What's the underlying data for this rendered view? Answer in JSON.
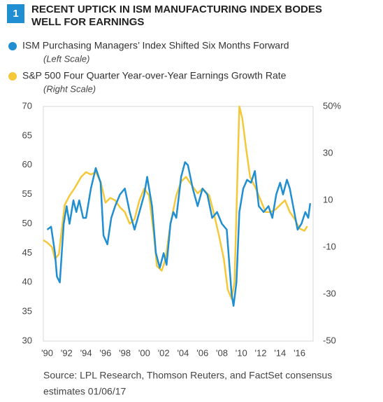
{
  "figure_number": "1",
  "chart_data": {
    "type": "line",
    "title": [
      "RECENT UPTICK IN ISM MANUFACTURING INDEX BODES",
      "WELL FOR EARNINGS"
    ],
    "xlim": [
      1989.6,
      2017.4
    ],
    "xticks": [
      {
        "value": 1990,
        "label": "'90"
      },
      {
        "value": 1992,
        "label": "'92"
      },
      {
        "value": 1994,
        "label": "'94"
      },
      {
        "value": 1996,
        "label": "'96"
      },
      {
        "value": 1998,
        "label": "'98"
      },
      {
        "value": 2000,
        "label": "'00"
      },
      {
        "value": 2002,
        "label": "'02"
      },
      {
        "value": 2004,
        "label": "'04"
      },
      {
        "value": 2006,
        "label": "'06"
      },
      {
        "value": 2008,
        "label": "'08"
      },
      {
        "value": 2010,
        "label": "'10"
      },
      {
        "value": 2012,
        "label": "'12"
      },
      {
        "value": 2014,
        "label": "'14"
      },
      {
        "value": 2016,
        "label": "'16"
      }
    ],
    "ylim": [
      30,
      70
    ],
    "yticks": [
      30,
      35,
      40,
      45,
      50,
      55,
      60,
      65,
      70
    ],
    "y2lim": [
      -50,
      50
    ],
    "y2ticks": [
      -50,
      -30,
      -10,
      10,
      30,
      {
        "value": 50,
        "label": "50%"
      }
    ],
    "grid": false,
    "series": [
      {
        "name": "ISM Purchasing Managers’ Index Shifted Six Months Forward",
        "note": "(Left Scale)",
        "color": "#1f8fd1",
        "axis": "y",
        "x": [
          1990.0,
          1990.4,
          1990.8,
          1991.0,
          1991.3,
          1991.7,
          1992.0,
          1992.3,
          1992.7,
          1993.0,
          1993.3,
          1993.7,
          1994.0,
          1994.5,
          1995.0,
          1995.5,
          1995.8,
          1996.2,
          1996.6,
          1997.0,
          1997.5,
          1998.0,
          1998.5,
          1999.0,
          1999.5,
          2000.0,
          2000.3,
          2000.8,
          2001.2,
          2001.6,
          2002.0,
          2002.3,
          2002.7,
          2003.0,
          2003.3,
          2003.8,
          2004.2,
          2004.5,
          2005.0,
          2005.5,
          2006.0,
          2006.5,
          2007.0,
          2007.5,
          2008.0,
          2008.5,
          2009.0,
          2009.2,
          2009.5,
          2009.8,
          2010.2,
          2010.6,
          2011.0,
          2011.4,
          2011.8,
          2012.3,
          2012.8,
          2013.2,
          2013.6,
          2014.0,
          2014.3,
          2014.7,
          2015.0,
          2015.4,
          2015.8,
          2016.2,
          2016.6,
          2016.9,
          2017.1
        ],
        "values": [
          49,
          49.5,
          45,
          41,
          40,
          50,
          53,
          50,
          54,
          52,
          54,
          51,
          51,
          56,
          59.5,
          57,
          48,
          46.5,
          51,
          53,
          55,
          56,
          52,
          49,
          52,
          55,
          58,
          53,
          45,
          42.5,
          45,
          43,
          50,
          52,
          51,
          58,
          60.5,
          60,
          56,
          53,
          56,
          55,
          51,
          52,
          50,
          49,
          38,
          36,
          40,
          52,
          56,
          57.5,
          57,
          59,
          53,
          52,
          53,
          51,
          55,
          57,
          55,
          57.5,
          56,
          52.5,
          49,
          50,
          52,
          51,
          53.5
        ]
      },
      {
        "name": "S&P 500 Four Quarter Year-over-Year Earnings Growth Rate",
        "note": "(Right Scale)",
        "color": "#f5c83a",
        "axis": "y2",
        "x": [
          1989.6,
          1990.0,
          1990.5,
          1990.8,
          1991.2,
          1991.8,
          1992.3,
          1992.8,
          1993.5,
          1994.0,
          1994.5,
          1995.0,
          1995.5,
          1996.0,
          1996.5,
          1997.0,
          1997.5,
          1998.0,
          1998.5,
          1999.0,
          1999.5,
          2000.0,
          2000.5,
          2001.0,
          2001.3,
          2001.8,
          2002.2,
          2002.7,
          2003.3,
          2003.8,
          2004.3,
          2004.8,
          2005.5,
          2006.0,
          2006.7,
          2007.2,
          2007.7,
          2008.2,
          2008.6,
          2009.0,
          2009.3,
          2009.6,
          2009.8,
          2010.1,
          2010.5,
          2010.9,
          2011.5,
          2012.0,
          2012.5,
          2013.0,
          2013.5,
          2014.0,
          2014.5,
          2015.0,
          2015.5,
          2016.0,
          2016.5,
          2016.8
        ],
        "values": [
          -7,
          -8,
          -10,
          -15,
          -13,
          8,
          12,
          15,
          20,
          22,
          21,
          22,
          18,
          9,
          11,
          10,
          7,
          5,
          0,
          2,
          10,
          15,
          12,
          -5,
          -18,
          -20,
          -15,
          0,
          12,
          18,
          20,
          17,
          13,
          15,
          12,
          4,
          -5,
          -15,
          -28,
          -32,
          -25,
          20,
          50,
          45,
          32,
          20,
          15,
          10,
          5,
          5,
          6,
          8,
          10,
          5,
          2,
          -2,
          -3,
          -1
        ]
      }
    ]
  },
  "source": [
    "Source: LPL Research, Thomson Reuters, and FactSet consensus",
    "estimates   01/06/17"
  ]
}
